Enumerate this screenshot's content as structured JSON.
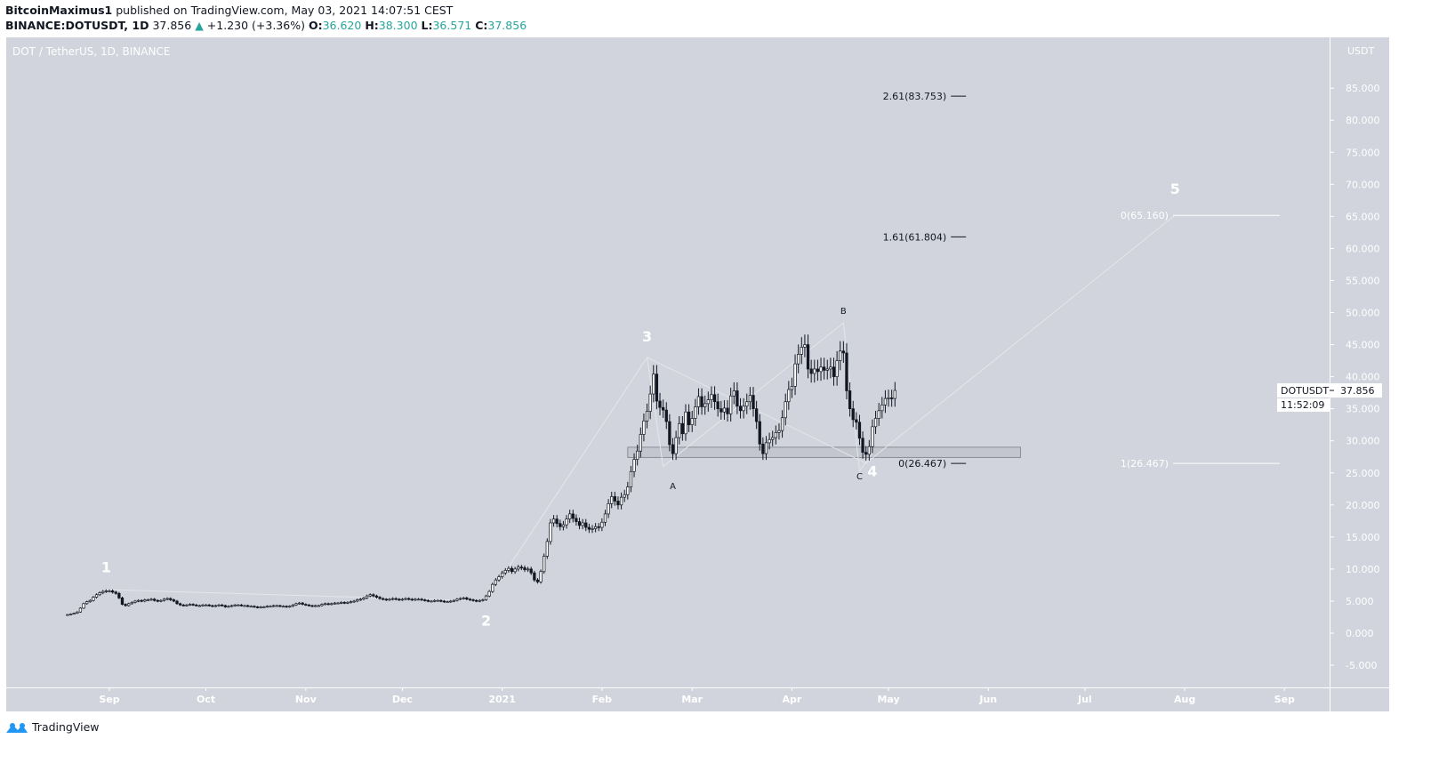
{
  "header": {
    "author": "BitcoinMaximus1",
    "published": "published on TradingView.com, May 03, 2021 14:07:51 CEST",
    "symbol": "BINANCE:DOTUSDT, 1D",
    "last": "37.856",
    "change": "+1.230 (+3.36%)",
    "o_label": "O:",
    "o": "36.620",
    "h_label": "H:",
    "h": "38.300",
    "l_label": "L:",
    "l": "36.571",
    "c_label": "C:",
    "c": "37.856",
    "up_icon": "triangle-up-icon"
  },
  "footer": {
    "brand": "TradingView",
    "logo_icon": "tradingview-cloud-icon"
  },
  "colors": {
    "background": "#d1d4dc",
    "axis_text": "#ffffff",
    "candle_up": "#ffffff",
    "candle_down": "#131722",
    "up_text": "#26a69a",
    "zone": "#c3c6cf"
  },
  "chart_data": {
    "type": "candlestick",
    "title": "DOT / TetherUS, 1D, BINANCE",
    "currency": "USDT",
    "ylim": [
      -9,
      92
    ],
    "y_ticks": [
      "85.000",
      "80.000",
      "75.000",
      "70.000",
      "65.000",
      "60.000",
      "55.000",
      "50.000",
      "45.000",
      "40.000",
      "35.000",
      "30.000",
      "25.000",
      "20.000",
      "15.000",
      "10.000",
      "5.000",
      "0.000",
      "-5.000"
    ],
    "y_tick_values": [
      85,
      80,
      75,
      70,
      65,
      60,
      55,
      50,
      45,
      40,
      35,
      30,
      25,
      20,
      15,
      10,
      5,
      0,
      -5
    ],
    "x_ticks": [
      {
        "label": "Sep",
        "date": "2020-09-01"
      },
      {
        "label": "Oct",
        "date": "2020-10-01"
      },
      {
        "label": "Nov",
        "date": "2020-11-01"
      },
      {
        "label": "Dec",
        "date": "2020-12-01"
      },
      {
        "label": "2021",
        "date": "2021-01-01"
      },
      {
        "label": "Feb",
        "date": "2021-02-01"
      },
      {
        "label": "Mar",
        "date": "2021-03-01"
      },
      {
        "label": "Apr",
        "date": "2021-04-01"
      },
      {
        "label": "May",
        "date": "2021-05-01"
      },
      {
        "label": "Jun",
        "date": "2021-06-01"
      },
      {
        "label": "Jul",
        "date": "2021-07-01"
      },
      {
        "label": "Aug",
        "date": "2021-08-01"
      },
      {
        "label": "Sep",
        "date": "2021-09-01"
      }
    ],
    "daily_closes": [
      {
        "start": "2020-08-19",
        "closes": [
          2.9,
          3.0,
          3.1,
          3.3,
          3.9,
          4.6,
          4.9,
          5.1,
          5.6,
          6.0,
          6.3,
          6.5,
          6.6
        ]
      },
      {
        "start": "2020-09-01",
        "closes": [
          6.6,
          6.4,
          6.2,
          5.5,
          4.5,
          4.3,
          4.6,
          4.8,
          5.0,
          5.1,
          5.0,
          5.2,
          5.2,
          5.3,
          5.1,
          5.0,
          5.1,
          5.3,
          5.4,
          5.2,
          5.0,
          4.6,
          4.4,
          4.3,
          4.4,
          4.5,
          4.4,
          4.3,
          4.3,
          4.4
        ]
      },
      {
        "start": "2020-10-01",
        "closes": [
          4.4,
          4.3,
          4.2,
          4.3,
          4.4,
          4.3,
          4.1,
          4.2,
          4.3,
          4.4,
          4.4,
          4.3,
          4.3,
          4.2,
          4.2,
          4.1,
          4.0,
          4.1,
          4.1,
          4.2,
          4.2,
          4.3,
          4.3,
          4.2,
          4.2,
          4.1,
          4.2,
          4.4,
          4.6,
          4.7,
          4.5
        ]
      },
      {
        "start": "2020-11-01",
        "closes": [
          4.4,
          4.3,
          4.2,
          4.3,
          4.3,
          4.5,
          4.6,
          4.5,
          4.6,
          4.7,
          4.7,
          4.8,
          4.7,
          4.8,
          4.9,
          5.0,
          5.2,
          5.3,
          5.5,
          5.8,
          6.0,
          5.8,
          5.6,
          5.4,
          5.3,
          5.2,
          5.3,
          5.4,
          5.3,
          5.2
        ]
      },
      {
        "start": "2020-12-01",
        "closes": [
          5.3,
          5.4,
          5.3,
          5.2,
          5.3,
          5.3,
          5.2,
          5.1,
          5.0,
          5.0,
          5.1,
          5.1,
          5.0,
          4.9,
          4.9,
          5.0,
          5.1,
          5.3,
          5.4,
          5.5,
          5.3,
          5.2,
          5.1,
          5.0,
          5.1,
          5.2,
          5.8,
          6.5,
          7.6,
          8.3,
          8.8
        ]
      },
      {
        "start": "2021-01-01",
        "closes": [
          9.4,
          9.8,
          10.1,
          9.6,
          10.0,
          10.3,
          10.2,
          9.9,
          10.0,
          9.4,
          8.3,
          8.0,
          9.6,
          12.0,
          14.3,
          17.2,
          17.8,
          17.1,
          16.6,
          16.9,
          17.8,
          18.6,
          17.9,
          17.4,
          16.8,
          17.2,
          16.5,
          16.2,
          16.3,
          16.6,
          16.5
        ]
      },
      {
        "start": "2021-02-01",
        "closes": [
          17.3,
          18.6,
          20.2,
          21.3,
          20.6,
          20.0,
          21.2,
          21.6,
          22.8,
          25.2,
          27.1,
          28.4,
          31.0,
          33.1,
          34.6,
          37.3,
          40.4,
          36.2,
          35.2,
          34.8,
          33.0,
          29.4,
          28.0,
          30.5,
          32.7,
          31.1,
          34.5,
          32.5
        ]
      },
      {
        "start": "2021-03-01",
        "closes": [
          33.5,
          35.3,
          36.9,
          35.3,
          35.8,
          36.4,
          37.2,
          36.1,
          35.0,
          34.5,
          35.1,
          34.2,
          37.0,
          37.8,
          35.4,
          34.7,
          35.4,
          36.1,
          37.1,
          35.0,
          33.0,
          29.5,
          28.0,
          29.7,
          30.2,
          30.5,
          31.3,
          31.6,
          33.6,
          36.1,
          38.0
        ]
      },
      {
        "start": "2021-04-01",
        "closes": [
          38.5,
          42.0,
          43.5,
          44.6,
          45.0,
          41.2,
          40.5,
          41.2,
          40.8,
          41.5,
          41.0,
          41.2,
          41.5,
          40.0,
          42.5,
          44.0,
          43.7,
          37.8,
          35.0,
          33.3,
          32.9,
          30.4,
          28.2,
          27.9,
          29.1,
          32.2,
          33.5,
          34.7,
          35.6,
          36.6
        ]
      },
      {
        "start": "2021-05-01",
        "closes": [
          36.7,
          36.6,
          37.856
        ]
      }
    ],
    "last_price_label": {
      "symbol": "DOTUSDT",
      "price": "37.856",
      "countdown": "11:52:09"
    },
    "wave_labels": [
      {
        "text": "1",
        "date": "2020-08-31",
        "price": 9.5
      },
      {
        "text": "2",
        "date": "2020-12-27",
        "price": 1.2
      },
      {
        "text": "3",
        "date": "2021-02-15",
        "price": 45.5
      },
      {
        "text": "4",
        "date": "2021-04-26",
        "price": 24.5
      },
      {
        "text": "5",
        "date": "2021-07-29",
        "price": 68.5
      }
    ],
    "abc_labels": [
      {
        "text": "A",
        "date": "2021-02-23",
        "price": 22.5
      },
      {
        "text": "B",
        "date": "2021-04-17",
        "price": 49.8
      },
      {
        "text": "C",
        "date": "2021-04-22",
        "price": 24.0
      }
    ],
    "wave_path": [
      {
        "date": "2020-08-31",
        "price": 6.8
      },
      {
        "date": "2020-12-27",
        "price": 5.0
      },
      {
        "date": "2021-02-15",
        "price": 43.0
      },
      {
        "date": "2021-04-24",
        "price": 26.5
      },
      {
        "date": "2021-07-29",
        "price": 65.2
      }
    ],
    "abc_path": [
      {
        "date": "2021-02-15",
        "price": 43.0
      },
      {
        "date": "2021-02-20",
        "price": 26.0
      },
      {
        "date": "2021-04-17",
        "price": 48.4
      },
      {
        "date": "2021-04-22",
        "price": 25.3
      },
      {
        "date": "2021-04-26",
        "price": 28.0
      }
    ],
    "zone": {
      "from_date": "2021-02-09",
      "to_date": "2021-06-11",
      "low": 27.4,
      "high": 29.0
    },
    "fib_labels": [
      {
        "text": "2.61(83.753)",
        "price": 83.753,
        "style": "dark",
        "date": "2021-05-19"
      },
      {
        "text": "1.61(61.804)",
        "price": 61.804,
        "style": "dark",
        "date": "2021-05-19"
      },
      {
        "text": "0(26.467)",
        "price": 26.467,
        "style": "dark",
        "date": "2021-05-19"
      },
      {
        "text": "0(65.160)",
        "price": 65.16,
        "style": "light",
        "date": "2021-07-27"
      },
      {
        "text": "1(26.467)",
        "price": 26.467,
        "style": "light",
        "date": "2021-07-27"
      }
    ]
  }
}
